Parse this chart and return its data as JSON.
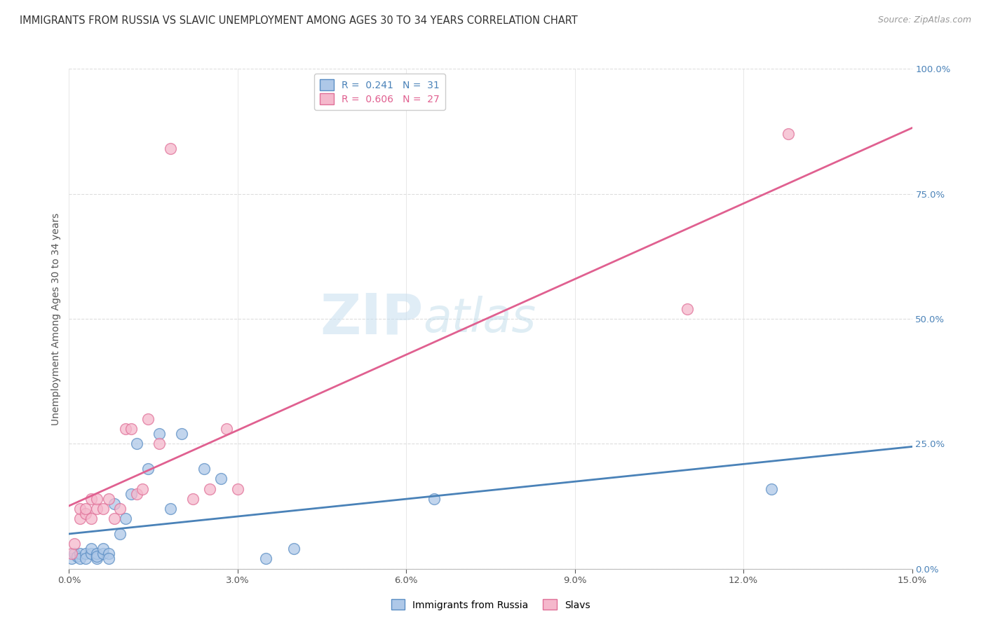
{
  "title": "IMMIGRANTS FROM RUSSIA VS SLAVIC UNEMPLOYMENT AMONG AGES 30 TO 34 YEARS CORRELATION CHART",
  "source": "Source: ZipAtlas.com",
  "ylabel": "Unemployment Among Ages 30 to 34 years",
  "xlim": [
    0.0,
    0.15
  ],
  "ylim": [
    0.0,
    1.0
  ],
  "xticks": [
    0.0,
    0.03,
    0.06,
    0.09,
    0.12,
    0.15
  ],
  "xtick_labels": [
    "0.0%",
    "3.0%",
    "6.0%",
    "9.0%",
    "12.0%",
    "15.0%"
  ],
  "yticks_right": [
    0.0,
    0.25,
    0.5,
    0.75,
    1.0
  ],
  "ytick_labels_right": [
    "0.0%",
    "25.0%",
    "50.0%",
    "75.0%",
    "100.0%"
  ],
  "blue_scatter_x": [
    0.0005,
    0.001,
    0.0015,
    0.002,
    0.002,
    0.003,
    0.003,
    0.004,
    0.004,
    0.005,
    0.005,
    0.005,
    0.006,
    0.006,
    0.007,
    0.007,
    0.008,
    0.009,
    0.01,
    0.011,
    0.012,
    0.014,
    0.016,
    0.018,
    0.02,
    0.024,
    0.027,
    0.035,
    0.04,
    0.065,
    0.125
  ],
  "blue_scatter_y": [
    0.02,
    0.03,
    0.025,
    0.03,
    0.02,
    0.03,
    0.02,
    0.03,
    0.04,
    0.02,
    0.03,
    0.025,
    0.03,
    0.04,
    0.03,
    0.02,
    0.13,
    0.07,
    0.1,
    0.15,
    0.25,
    0.2,
    0.27,
    0.12,
    0.27,
    0.2,
    0.18,
    0.02,
    0.04,
    0.14,
    0.16
  ],
  "pink_scatter_x": [
    0.0005,
    0.001,
    0.002,
    0.002,
    0.003,
    0.003,
    0.004,
    0.004,
    0.005,
    0.005,
    0.006,
    0.007,
    0.008,
    0.009,
    0.01,
    0.011,
    0.012,
    0.013,
    0.014,
    0.016,
    0.018,
    0.022,
    0.025,
    0.028,
    0.03,
    0.11,
    0.128
  ],
  "pink_scatter_y": [
    0.03,
    0.05,
    0.1,
    0.12,
    0.11,
    0.12,
    0.1,
    0.14,
    0.12,
    0.14,
    0.12,
    0.14,
    0.1,
    0.12,
    0.28,
    0.28,
    0.15,
    0.16,
    0.3,
    0.25,
    0.84,
    0.14,
    0.16,
    0.28,
    0.16,
    0.52,
    0.87
  ],
  "blue_R": 0.241,
  "blue_N": 31,
  "pink_R": 0.606,
  "pink_N": 27,
  "blue_fill_color": "#aec8e8",
  "pink_fill_color": "#f5b8cc",
  "blue_edge_color": "#5b8ec4",
  "pink_edge_color": "#e07098",
  "blue_line_color": "#4a82b8",
  "pink_line_color": "#e06090",
  "right_tick_color": "#4a82b8",
  "title_fontsize": 10.5,
  "source_fontsize": 9,
  "axis_label_fontsize": 10,
  "tick_fontsize": 9.5,
  "legend_fontsize": 10,
  "watermark_color": "#c8dff0",
  "background_color": "#ffffff",
  "grid_color": "#dddddd"
}
